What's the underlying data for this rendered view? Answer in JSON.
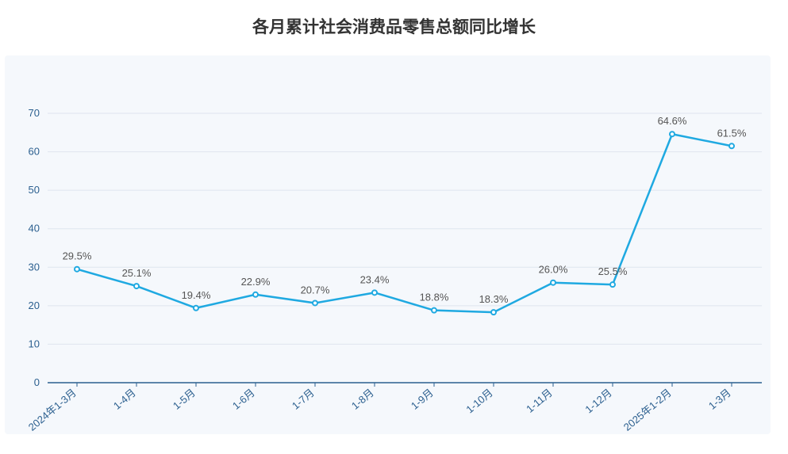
{
  "chart_data": {
    "type": "line",
    "title": "各月累计社会消费品零售总额同比增长",
    "xlabel": "",
    "ylabel": "",
    "ylim": [
      0,
      70
    ],
    "yticks": [
      0,
      10,
      20,
      30,
      40,
      50,
      60,
      70
    ],
    "grid": true,
    "categories": [
      "2024年1-3月",
      "1-4月",
      "1-5月",
      "1-6月",
      "1-7月",
      "1-8月",
      "1-9月",
      "1-10月",
      "1-11月",
      "1-12月",
      "2025年1-2月",
      "1-3月"
    ],
    "series": [
      {
        "values": [
          29.5,
          25.1,
          19.4,
          22.9,
          20.7,
          23.4,
          18.8,
          18.3,
          26.0,
          25.5,
          64.6,
          61.5
        ],
        "labels": [
          "29.5%",
          "25.1%",
          "19.4%",
          "22.9%",
          "20.7%",
          "23.4%",
          "18.8%",
          "18.3%",
          "26.0%",
          "25.5%",
          "64.6%",
          "61.5%"
        ]
      }
    ],
    "colors": {
      "line": "#1fa9e1",
      "grid": "#dfe5ee",
      "axis": "#2b5f8f",
      "panel": "#f5f8fc"
    }
  }
}
